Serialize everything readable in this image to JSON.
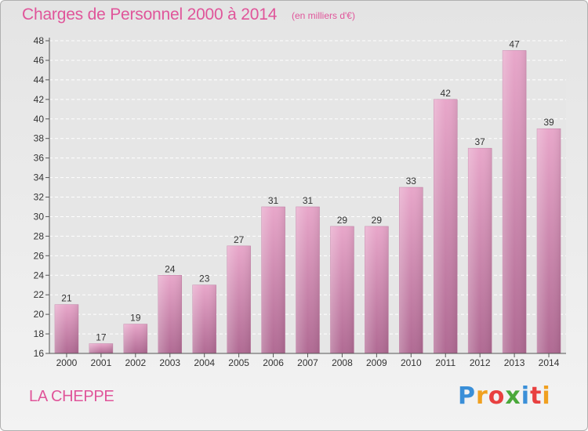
{
  "chart_data": {
    "type": "bar",
    "title": "Charges de Personnel 2000 à 2014",
    "subtitle": "(en milliers d'€)",
    "categories": [
      "2000",
      "2001",
      "2002",
      "2003",
      "2004",
      "2005",
      "2006",
      "2007",
      "2008",
      "2009",
      "2010",
      "2011",
      "2012",
      "2013",
      "2014"
    ],
    "values": [
      21,
      17,
      19,
      24,
      23,
      27,
      31,
      31,
      29,
      29,
      33,
      42,
      37,
      47,
      39
    ],
    "ylim": [
      16,
      48
    ],
    "yticks": [
      16,
      18,
      20,
      22,
      24,
      26,
      28,
      30,
      32,
      34,
      36,
      38,
      40,
      42,
      44,
      46,
      48
    ],
    "grid": true,
    "bar_color": "#d98ab4"
  },
  "commune": "LA CHEPPE",
  "logo": {
    "letters": [
      "P",
      "r",
      "o",
      "x",
      "i",
      "t",
      "i"
    ],
    "colors": [
      "#3a8fd8",
      "#f0a020",
      "#e84040",
      "#4aa83a",
      "#3a8fd8",
      "#e84040",
      "#f0a020"
    ]
  }
}
